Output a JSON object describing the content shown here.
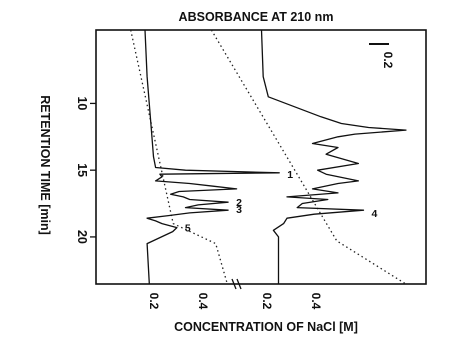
{
  "chart_data": {
    "type": "line",
    "orientation": "rotated; retention time on vertical axis, absorbance and NaCl concentration on horizontal axis",
    "title": "ABSORBANCE AT 210 nm",
    "xlabel": "CONCENTRATION OF NaCl [M]",
    "ylabel": "RETENTION TIME [min]",
    "ylim": [
      23.5,
      4.5
    ],
    "yticks": [
      10,
      15,
      20
    ],
    "scale_bar_label": "0.2",
    "panels": [
      {
        "name": "left",
        "conc_ticks": [
          "0.2",
          "0.4"
        ],
        "peak_labels": [
          {
            "text": "1",
            "t": 15.3
          },
          {
            "text": "2",
            "t": 17.4
          },
          {
            "text": "3",
            "t": 17.9
          },
          {
            "text": "5",
            "t": 19.3
          }
        ],
        "gradient": {
          "t": [
            4.5,
            19.0,
            20.5,
            23.5
          ],
          "conc": [
            0.08,
            0.3,
            0.52,
            0.58
          ]
        },
        "trace": {
          "t": [
            4.5,
            8.0,
            12.0,
            14.0,
            14.8,
            15.0,
            15.2,
            15.3,
            15.5,
            15.8,
            16.0,
            16.2,
            16.4,
            16.6,
            16.8,
            17.0,
            17.2,
            17.4,
            17.6,
            17.8,
            18.0,
            18.2,
            18.4,
            18.6,
            18.8,
            19.0,
            19.3,
            19.6,
            20.5,
            23.5
          ],
          "abs": [
            0.23,
            0.24,
            0.26,
            0.27,
            0.28,
            0.42,
            0.86,
            0.3,
            0.31,
            0.28,
            0.44,
            0.55,
            0.66,
            0.39,
            0.35,
            0.41,
            0.44,
            0.62,
            0.48,
            0.42,
            0.62,
            0.44,
            0.34,
            0.24,
            0.28,
            0.31,
            0.38,
            0.36,
            0.24,
            0.25
          ]
        }
      },
      {
        "name": "right",
        "conc_ticks": [
          "0.2",
          "0.4"
        ],
        "peak_labels": [
          {
            "text": "4",
            "t": 18.2
          }
        ],
        "gradient": {
          "t": [
            4.5,
            20.3,
            23.5
          ],
          "conc": [
            0.05,
            0.6,
            0.9
          ]
        },
        "trace": {
          "t": [
            4.5,
            8.0,
            9.5,
            11.0,
            11.5,
            11.8,
            12.0,
            12.3,
            12.5,
            13.0,
            13.3,
            13.8,
            14.5,
            15.0,
            15.3,
            15.8,
            16.0,
            16.4,
            16.7,
            17.0,
            17.2,
            17.5,
            17.8,
            18.0,
            18.3,
            18.6,
            19.0,
            19.5,
            20.0,
            23.5
          ],
          "abs": [
            0.15,
            0.16,
            0.19,
            0.5,
            0.62,
            0.78,
            1.0,
            0.7,
            0.6,
            0.45,
            0.6,
            0.53,
            0.72,
            0.48,
            0.53,
            0.72,
            0.6,
            0.45,
            0.6,
            0.3,
            0.54,
            0.39,
            0.36,
            0.75,
            0.46,
            0.3,
            0.28,
            0.22,
            0.25,
            0.25
          ]
        }
      }
    ]
  }
}
